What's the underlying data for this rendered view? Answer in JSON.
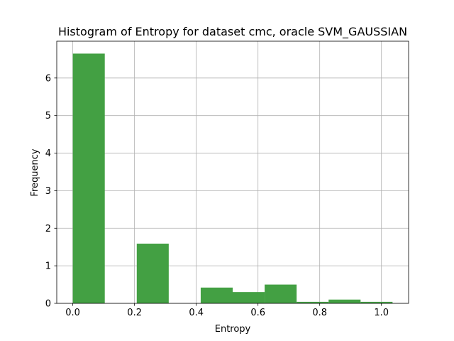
{
  "chart_data": {
    "type": "bar",
    "title": "Histogram of Entropy for dataset cmc, oracle SVM_GAUSSIAN",
    "xlabel": "Entropy",
    "ylabel": "Frequency",
    "xlim": [
      -0.052,
      1.088
    ],
    "ylim": [
      0,
      6.98
    ],
    "xticks": [
      "0.0",
      "0.2",
      "0.4",
      "0.6",
      "0.8",
      "1.0"
    ],
    "xtick_values": [
      0.0,
      0.2,
      0.4,
      0.6,
      0.8,
      1.0
    ],
    "yticks": [
      "0",
      "1",
      "2",
      "3",
      "4",
      "5",
      "6"
    ],
    "ytick_values": [
      0,
      1,
      2,
      3,
      4,
      5,
      6
    ],
    "grid": true,
    "bar_color": "#43a043",
    "bins": [
      {
        "x0": 0.0,
        "x1": 0.1036,
        "value": 6.65
      },
      {
        "x0": 0.1036,
        "x1": 0.2072,
        "value": 0.0
      },
      {
        "x0": 0.2072,
        "x1": 0.3108,
        "value": 1.59
      },
      {
        "x0": 0.3108,
        "x1": 0.4144,
        "value": 0.0
      },
      {
        "x0": 0.4144,
        "x1": 0.518,
        "value": 0.42
      },
      {
        "x0": 0.518,
        "x1": 0.6216,
        "value": 0.3
      },
      {
        "x0": 0.6216,
        "x1": 0.7252,
        "value": 0.5
      },
      {
        "x0": 0.7252,
        "x1": 0.8288,
        "value": 0.04
      },
      {
        "x0": 0.8288,
        "x1": 0.9324,
        "value": 0.1
      },
      {
        "x0": 0.9324,
        "x1": 1.036,
        "value": 0.04
      }
    ]
  }
}
